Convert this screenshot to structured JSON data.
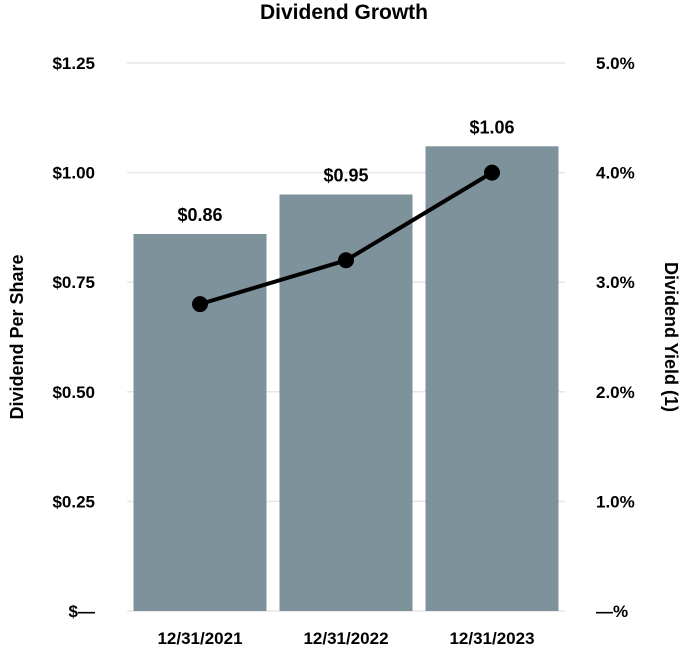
{
  "chart_data": {
    "type": "bar",
    "title": "Dividend Growth",
    "categories": [
      "12/31/2021",
      "12/31/2022",
      "12/31/2023"
    ],
    "series": [
      {
        "name": "Dividend Per Share",
        "kind": "bar",
        "axis": "left",
        "values": [
          0.86,
          0.95,
          1.06
        ],
        "labels": [
          "$0.86",
          "$0.95",
          "$1.06"
        ],
        "color": "#7d929b"
      },
      {
        "name": "Dividend Yield (1)",
        "kind": "line",
        "axis": "right",
        "values": [
          2.8,
          3.2,
          4.0
        ],
        "color": "#000000"
      }
    ],
    "ylabel_left": "Dividend Per Share",
    "ylabel_right": "Dividend Yield (1)",
    "ylim_left": [
      0,
      1.25
    ],
    "ylim_right": [
      0,
      5.0
    ],
    "yticks_left": [
      "$—",
      "$0.25",
      "$0.50",
      "$0.75",
      "$1.00",
      "$1.25"
    ],
    "yticks_right": [
      "—%",
      "1.0%",
      "2.0%",
      "3.0%",
      "4.0%",
      "5.0%"
    ],
    "grid": true,
    "gridline_color": "#e6e6e6"
  }
}
